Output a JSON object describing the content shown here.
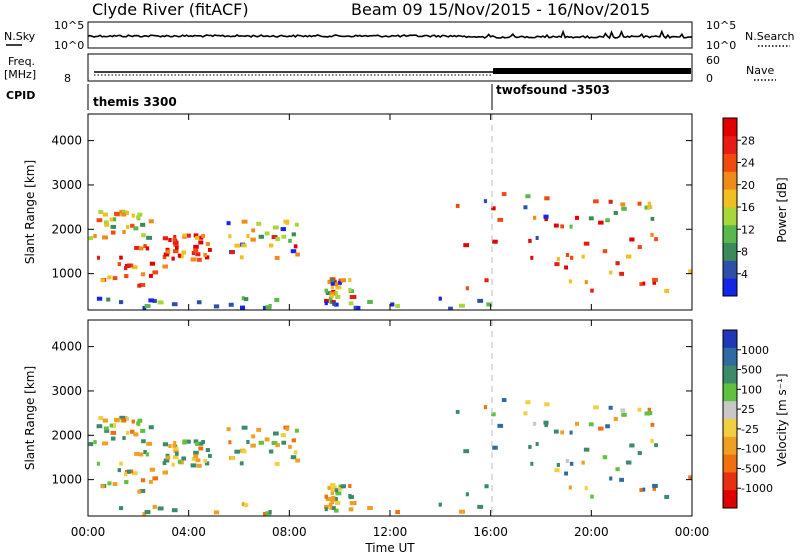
{
  "header": {
    "title": "Clyde River (fitACF)",
    "beam": "Beam 09",
    "date_range": "15/Nov/2015 - 16/Nov/2015"
  },
  "top_panels": {
    "nsky_label": "N.Sky",
    "nsearch_label": "N.Search",
    "nsky_ticks": [
      "10^5",
      "10^0"
    ],
    "nsearch_ticks": [
      "10^5",
      "10^0"
    ],
    "freq_label": "Freq.",
    "freq_unit": "[MHz]",
    "freq_ticks": [
      "8"
    ],
    "nave_label": "Nave",
    "nave_ticks": [
      "60",
      "0"
    ],
    "cpid_label": "CPID",
    "cpid_segments": [
      {
        "label": "themis 3300",
        "start_hour": 0
      },
      {
        "label": "twofsound -3503",
        "start_hour": 16
      }
    ]
  },
  "chart_data": [
    {
      "type": "heatmap",
      "name": "power",
      "xlabel": "",
      "ylabel": "Slant Range [km]",
      "yticks": [
        1000,
        2000,
        3000,
        4000
      ],
      "ylim": [
        180,
        4600
      ],
      "xlim_hours": [
        0,
        24
      ],
      "colorbar": {
        "label": "Power [dB]",
        "ticks": [
          "4",
          "8",
          "12",
          "16",
          "20",
          "24",
          "28"
        ],
        "colors": [
          "#1424e8",
          "#2c4fa8",
          "#3b8a5a",
          "#58b84a",
          "#a8d838",
          "#f0c020",
          "#f08a18",
          "#f04a10",
          "#e81c14",
          "#e00000"
        ]
      },
      "scatter_regions": [
        {
          "t": [
            0.3,
            3.3
          ],
          "r": [
            700,
            1800
          ],
          "level": "high"
        },
        {
          "t": [
            0.0,
            2.5
          ],
          "r": [
            1800,
            2400
          ],
          "level": "mid"
        },
        {
          "t": [
            3.3,
            4.8
          ],
          "r": [
            1300,
            1900
          ],
          "level": "high"
        },
        {
          "t": [
            5.5,
            8.4
          ],
          "r": [
            1300,
            2200
          ],
          "level": "mixed"
        },
        {
          "t": [
            9.3,
            10.5
          ],
          "r": [
            300,
            900
          ],
          "level": "mixed"
        },
        {
          "t": [
            14.6,
            24.0
          ],
          "r": [
            600,
            1800
          ],
          "level": "high"
        },
        {
          "t": [
            14.6,
            24.0
          ],
          "r": [
            1800,
            2800
          ],
          "level": "mixed"
        },
        {
          "t": [
            0.0,
            16.0
          ],
          "r": [
            200,
            450
          ],
          "level": "low"
        }
      ]
    },
    {
      "type": "heatmap",
      "name": "velocity",
      "xlabel": "Time UT",
      "ylabel": "Slant Range [km]",
      "yticks": [
        1000,
        2000,
        3000,
        4000
      ],
      "xticks": [
        "00:00",
        "04:00",
        "08:00",
        "12:00",
        "16:00",
        "20:00",
        "00:00"
      ],
      "ylim": [
        180,
        4600
      ],
      "xlim_hours": [
        0,
        24
      ],
      "colorbar": {
        "label": "Velocity [m s⁻¹]",
        "ticks": [
          "1000",
          "500",
          "100",
          "25",
          "-25",
          "-100",
          "-500",
          "-1000"
        ],
        "colors": [
          "#2038b8",
          "#2f6aa0",
          "#3b8a6a",
          "#60c040",
          "#c8c8c8",
          "#f0d040",
          "#f0a020",
          "#f07010",
          "#e83010",
          "#e00000"
        ]
      }
    }
  ]
}
